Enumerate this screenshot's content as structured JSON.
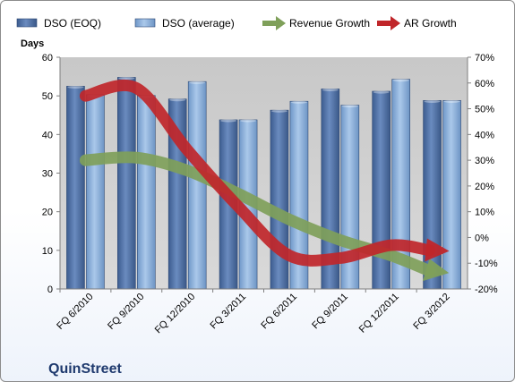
{
  "company": "QuinStreet",
  "chart_data": {
    "type": "bar",
    "categories": [
      "FQ 6/2010",
      "FQ 9/2010",
      "FQ 12/2010",
      "FQ 3/2011",
      "FQ 6/2011",
      "FQ 9/2011",
      "FQ 12/2011",
      "FQ 3/2012"
    ],
    "ylabel": "Days",
    "ylim": [
      0,
      60
    ],
    "yticks": [
      0,
      10,
      20,
      30,
      40,
      50,
      60
    ],
    "y2lim": [
      -0.2,
      0.7
    ],
    "y2ticks": [
      "-20%",
      "-10%",
      "0%",
      "10%",
      "20%",
      "30%",
      "40%",
      "50%",
      "60%",
      "70%"
    ],
    "series": [
      {
        "name": "DSO (EOQ)",
        "type": "bar",
        "axis": "left",
        "color": "#4f6fa1",
        "values": [
          52.5,
          54.8,
          49.2,
          43.8,
          46.3,
          51.8,
          51.2,
          48.8
        ]
      },
      {
        "name": "DSO (average)",
        "type": "bar",
        "axis": "left",
        "color": "#8fb2da",
        "values": [
          50.3,
          50.1,
          53.7,
          43.8,
          48.6,
          47.6,
          54.3,
          48.8
        ]
      },
      {
        "name": "Revenue Growth",
        "type": "line",
        "axis": "right",
        "color": "#7fa05a",
        "values": [
          0.3,
          0.31,
          0.26,
          0.17,
          0.07,
          -0.01,
          -0.07,
          -0.13
        ]
      },
      {
        "name": "AR Growth",
        "type": "line",
        "axis": "right",
        "color": "#c0262a",
        "values": [
          0.55,
          0.58,
          0.34,
          0.12,
          -0.07,
          -0.08,
          -0.03,
          -0.05
        ]
      }
    ],
    "legend_position": "top",
    "grid": false
  }
}
